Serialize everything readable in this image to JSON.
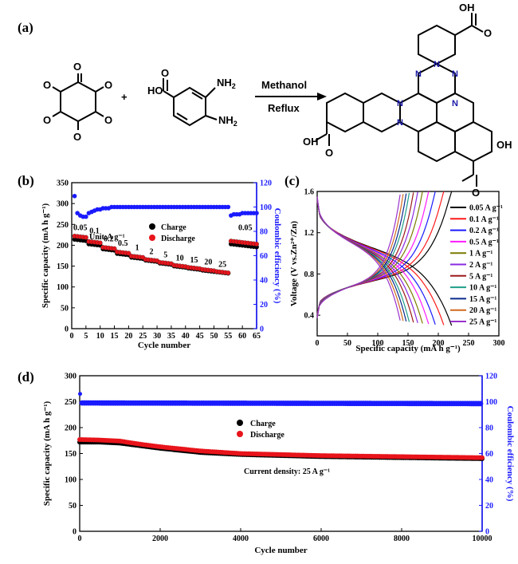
{
  "panel_labels": {
    "a": "(a)",
    "b": "(b)",
    "c": "(c)",
    "d": "(d)"
  },
  "reaction": {
    "plus": "+",
    "condition_top": "Methanol",
    "condition_bottom": "Reflux",
    "atoms": {
      "O": "O",
      "HO": "HO",
      "OH": "OH",
      "NH2": "NH",
      "sub2": "2",
      "N": "N"
    }
  },
  "colors": {
    "charge": "#000000",
    "discharge": "#e8141b",
    "ce": "#1a1aff",
    "axis_right": "#1a1aff"
  },
  "chart_data": [
    {
      "id": "b",
      "type": "scatter",
      "xlabel": "Cycle number",
      "ylabel": "Specific capacity (mA h g⁻¹)",
      "y2label": "Coulombic efficiency (%)",
      "xlim": [
        0,
        65
      ],
      "ylim": [
        0,
        350
      ],
      "y2lim": [
        0,
        120
      ],
      "xticks": [
        0,
        5,
        10,
        15,
        20,
        25,
        30,
        35,
        40,
        45,
        50,
        55,
        60,
        65
      ],
      "yticks": [
        0,
        50,
        100,
        150,
        200,
        250,
        300,
        350
      ],
      "y2ticks": [
        0,
        20,
        40,
        60,
        80,
        100,
        120
      ],
      "legend": [
        "Charge",
        "Discharge"
      ],
      "unit_note": "Unit:A g⁻¹",
      "rate_labels": [
        {
          "text": "0.05",
          "x": 3,
          "y": 229
        },
        {
          "text": "0.1",
          "x": 8,
          "y": 221
        },
        {
          "text": "0.2",
          "x": 13,
          "y": 202
        },
        {
          "text": "0.5",
          "x": 18,
          "y": 191
        },
        {
          "text": "1",
          "x": 23,
          "y": 181
        },
        {
          "text": "2",
          "x": 28,
          "y": 171
        },
        {
          "text": "5",
          "x": 33,
          "y": 164
        },
        {
          "text": "10",
          "x": 38,
          "y": 156
        },
        {
          "text": "15",
          "x": 43,
          "y": 151
        },
        {
          "text": "20",
          "x": 48,
          "y": 146
        },
        {
          "text": "25",
          "x": 53,
          "y": 141
        },
        {
          "text": "0.05",
          "x": 61,
          "y": 229
        }
      ],
      "charge_steps": [
        {
          "from": 1,
          "to": 5,
          "value": 214
        },
        {
          "from": 6,
          "to": 10,
          "value": 203
        },
        {
          "from": 11,
          "to": 15,
          "value": 191
        },
        {
          "from": 16,
          "to": 20,
          "value": 180
        },
        {
          "from": 21,
          "to": 25,
          "value": 171
        },
        {
          "from": 26,
          "to": 30,
          "value": 164
        },
        {
          "from": 31,
          "to": 35,
          "value": 157
        },
        {
          "from": 36,
          "to": 40,
          "value": 150
        },
        {
          "from": 41,
          "to": 45,
          "value": 145
        },
        {
          "from": 46,
          "to": 50,
          "value": 140
        },
        {
          "from": 51,
          "to": 55,
          "value": 136
        },
        {
          "from": 56,
          "to": 65,
          "value": 203
        }
      ],
      "discharge_steps": [
        {
          "from": 1,
          "to": 5,
          "value": 222
        },
        {
          "from": 6,
          "to": 10,
          "value": 209
        },
        {
          "from": 11,
          "to": 15,
          "value": 195
        },
        {
          "from": 16,
          "to": 20,
          "value": 184
        },
        {
          "from": 21,
          "to": 25,
          "value": 174
        },
        {
          "from": 26,
          "to": 30,
          "value": 166
        },
        {
          "from": 31,
          "to": 35,
          "value": 159
        },
        {
          "from": 36,
          "to": 40,
          "value": 152
        },
        {
          "from": 41,
          "to": 45,
          "value": 147
        },
        {
          "from": 46,
          "to": 50,
          "value": 142
        },
        {
          "from": 51,
          "to": 55,
          "value": 137
        },
        {
          "from": 56,
          "to": 65,
          "value": 210
        }
      ],
      "ce_points": [
        [
          1,
          109
        ],
        [
          2,
          95
        ],
        [
          3,
          93
        ],
        [
          4,
          92
        ],
        [
          5,
          92
        ],
        [
          6,
          95
        ],
        [
          7,
          96
        ],
        [
          8,
          97
        ],
        [
          9,
          98
        ],
        [
          10,
          98
        ],
        [
          11,
          99
        ],
        [
          12,
          99
        ],
        [
          13,
          99
        ],
        [
          14,
          100
        ],
        [
          15,
          100
        ],
        [
          16,
          100
        ],
        [
          17,
          100
        ],
        [
          18,
          100
        ],
        [
          19,
          100
        ],
        [
          20,
          100
        ],
        [
          21,
          100
        ],
        [
          22,
          100
        ],
        [
          23,
          100
        ],
        [
          24,
          100
        ],
        [
          25,
          100
        ],
        [
          26,
          100
        ],
        [
          27,
          100
        ],
        [
          28,
          100
        ],
        [
          29,
          100
        ],
        [
          30,
          100
        ],
        [
          31,
          100
        ],
        [
          32,
          100
        ],
        [
          33,
          100
        ],
        [
          34,
          100
        ],
        [
          35,
          100
        ],
        [
          36,
          100
        ],
        [
          37,
          100
        ],
        [
          38,
          100
        ],
        [
          39,
          100
        ],
        [
          40,
          100
        ],
        [
          41,
          100
        ],
        [
          42,
          100
        ],
        [
          43,
          100
        ],
        [
          44,
          100
        ],
        [
          45,
          100
        ],
        [
          46,
          100
        ],
        [
          47,
          100
        ],
        [
          48,
          100
        ],
        [
          49,
          100
        ],
        [
          50,
          100
        ],
        [
          51,
          100
        ],
        [
          52,
          100
        ],
        [
          53,
          100
        ],
        [
          54,
          100
        ],
        [
          55,
          100
        ],
        [
          56,
          93
        ],
        [
          57,
          94
        ],
        [
          58,
          94
        ],
        [
          59,
          94
        ],
        [
          60,
          95
        ],
        [
          61,
          95
        ],
        [
          62,
          95
        ],
        [
          63,
          95
        ],
        [
          64,
          95
        ],
        [
          65,
          95
        ]
      ]
    },
    {
      "id": "c",
      "type": "line",
      "xlabel": "Specific capacity (mA h g⁻¹)",
      "ylabel": "Voltage (V vs.Zn²⁺/Zn)",
      "xlim": [
        0,
        300
      ],
      "ylim": [
        0.2,
        1.6
      ],
      "xticks": [
        0,
        50,
        100,
        150,
        200,
        250,
        300
      ],
      "yticks": [
        0.4,
        0.8,
        1.2,
        1.6
      ],
      "series": [
        {
          "name": "0.05 A g⁻¹",
          "color": "#000000",
          "capacity": 222
        },
        {
          "name": "0.1 A g⁻¹",
          "color": "#ff1a1a",
          "capacity": 209
        },
        {
          "name": "0.2 A g⁻¹",
          "color": "#1a1aff",
          "capacity": 195
        },
        {
          "name": "0.5 A g⁻¹",
          "color": "#ff1aff",
          "capacity": 184
        },
        {
          "name": "1 A g⁻¹",
          "color": "#7a7a00",
          "capacity": 174
        },
        {
          "name": "2 A g⁻¹",
          "color": "#8a2be2",
          "capacity": 166
        },
        {
          "name": "5 A g⁻¹",
          "color": "#9b1b1b",
          "capacity": 159
        },
        {
          "name": "10 A g⁻¹",
          "color": "#1f9e89",
          "capacity": 152
        },
        {
          "name": "15 A g⁻¹",
          "color": "#0b2a8c",
          "capacity": 147
        },
        {
          "name": "20 A g⁻¹",
          "color": "#d2691e",
          "capacity": 142
        },
        {
          "name": "25 A g⁻¹",
          "color": "#9932cc",
          "capacity": 137
        }
      ]
    },
    {
      "id": "d",
      "type": "scatter",
      "xlabel": "Cycle number",
      "ylabel": "Specific capacity (mA h g⁻¹)",
      "y2label": "Coulombic efficiency (%)",
      "xlim": [
        0,
        10000
      ],
      "ylim": [
        0,
        300
      ],
      "y2lim": [
        0,
        120
      ],
      "xticks": [
        0,
        2000,
        4000,
        6000,
        8000,
        10000
      ],
      "yticks": [
        0,
        50,
        100,
        150,
        200,
        250,
        300
      ],
      "y2ticks": [
        0,
        20,
        40,
        60,
        80,
        100,
        120
      ],
      "legend": [
        "Charge",
        "Discharge"
      ],
      "annotation": "Current density: 25 A g⁻¹",
      "charge_points": [
        [
          0,
          172
        ],
        [
          500,
          172
        ],
        [
          1000,
          170
        ],
        [
          1500,
          165
        ],
        [
          2000,
          160
        ],
        [
          3000,
          152
        ],
        [
          4000,
          148
        ],
        [
          5000,
          146
        ],
        [
          6000,
          144
        ],
        [
          7000,
          143
        ],
        [
          8000,
          142
        ],
        [
          9000,
          141
        ],
        [
          10000,
          140
        ]
      ],
      "discharge_points": [
        [
          0,
          177
        ],
        [
          500,
          176
        ],
        [
          1000,
          174
        ],
        [
          1500,
          168
        ],
        [
          2000,
          163
        ],
        [
          3000,
          155
        ],
        [
          4000,
          150
        ],
        [
          5000,
          148
        ],
        [
          6000,
          146
        ],
        [
          7000,
          145
        ],
        [
          8000,
          144
        ],
        [
          9000,
          143
        ],
        [
          10000,
          142
        ]
      ],
      "ce_points": [
        [
          10,
          106
        ],
        [
          50,
          99
        ],
        [
          10000,
          98.5
        ]
      ]
    }
  ]
}
